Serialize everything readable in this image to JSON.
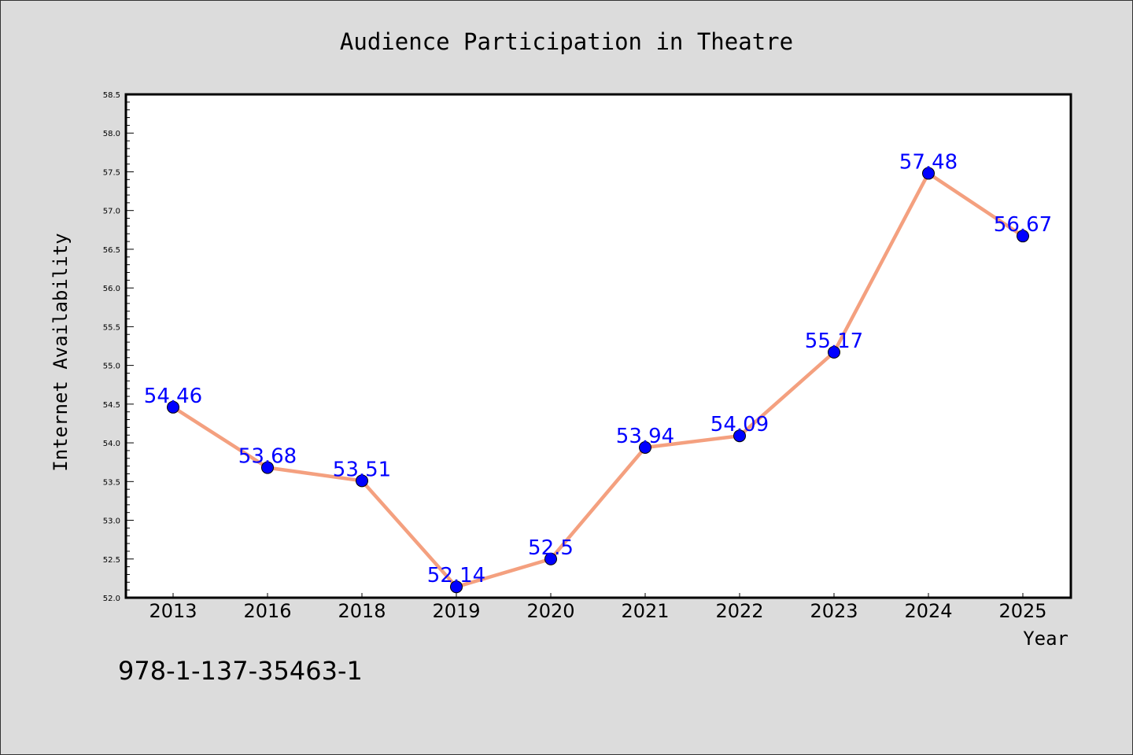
{
  "chart_data": {
    "type": "line",
    "title": "Audience Participation in Theatre",
    "xlabel": "Year",
    "ylabel": "Internet Availability",
    "categories": [
      "2013",
      "2016",
      "2018",
      "2019",
      "2020",
      "2021",
      "2022",
      "2023",
      "2024",
      "2025"
    ],
    "series": [
      {
        "values": [
          54.46,
          53.68,
          53.51,
          52.14,
          52.5,
          53.94,
          54.09,
          55.17,
          57.48,
          56.67
        ],
        "labels": [
          "54.46",
          "53.68",
          "53.51",
          "52.14",
          "52.5",
          "53.94",
          "54.09",
          "55.17",
          "57.48",
          "56.67"
        ],
        "line_color": "#f4a07f",
        "marker_color": "#0000ff"
      }
    ],
    "ylim": [
      52.0,
      58.5
    ],
    "y_ticks": [
      "52.0",
      "52.5",
      "53.0",
      "53.5",
      "54.0",
      "54.5",
      "55.0",
      "55.5",
      "56.0",
      "56.5",
      "57.0",
      "57.5",
      "58.0",
      "58.5"
    ],
    "grid": false,
    "legend": "none",
    "data_label_color": "#0000ff",
    "plot_background": "#ffffff",
    "figure_background": "#dcdcdc"
  },
  "footnote": "978-1-137-35463-1"
}
